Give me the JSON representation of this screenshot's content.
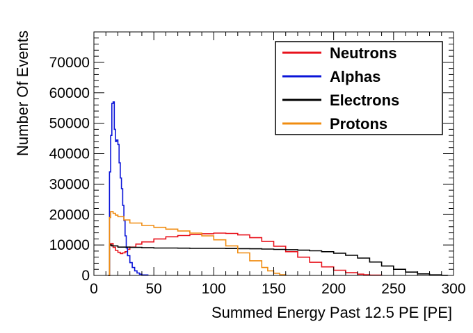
{
  "chart_data": {
    "type": "histogram-step",
    "title": "",
    "xlabel": "Summed Energy Past 12.5 PE [PE]",
    "ylabel": "Number Of Events",
    "xlim": [
      0,
      300
    ],
    "ylim": [
      0,
      80000
    ],
    "x_ticks": [
      0,
      50,
      100,
      150,
      200,
      250,
      300
    ],
    "y_ticks": [
      0,
      10000,
      20000,
      30000,
      40000,
      50000,
      60000,
      70000
    ],
    "grid": false,
    "legend_position": "top-right",
    "series": [
      {
        "name": "Neutrons",
        "color": "#e8121c",
        "points": [
          [
            12,
            0
          ],
          [
            13,
            9800
          ],
          [
            14,
            10500
          ],
          [
            16,
            9200
          ],
          [
            18,
            8200
          ],
          [
            20,
            7600
          ],
          [
            22,
            7200
          ],
          [
            24,
            7400
          ],
          [
            26,
            7800
          ],
          [
            28,
            8600
          ],
          [
            30,
            9300
          ],
          [
            35,
            10300
          ],
          [
            40,
            11000
          ],
          [
            50,
            12000
          ],
          [
            60,
            12700
          ],
          [
            70,
            13100
          ],
          [
            80,
            13400
          ],
          [
            90,
            13700
          ],
          [
            100,
            13900
          ],
          [
            110,
            13800
          ],
          [
            120,
            13300
          ],
          [
            130,
            12400
          ],
          [
            140,
            11200
          ],
          [
            150,
            9600
          ],
          [
            160,
            7800
          ],
          [
            170,
            6000
          ],
          [
            180,
            4300
          ],
          [
            190,
            2800
          ],
          [
            200,
            1700
          ],
          [
            210,
            900
          ],
          [
            220,
            400
          ],
          [
            225,
            200
          ],
          [
            230,
            80
          ],
          [
            240,
            0
          ]
        ]
      },
      {
        "name": "Alphas",
        "color": "#0a14d8",
        "points": [
          [
            12,
            0
          ],
          [
            13,
            34000
          ],
          [
            14,
            46000
          ],
          [
            15,
            56500
          ],
          [
            16,
            57000
          ],
          [
            17,
            48000
          ],
          [
            18,
            44000
          ],
          [
            19,
            44500
          ],
          [
            20,
            43000
          ],
          [
            21,
            37000
          ],
          [
            22,
            32000
          ],
          [
            23,
            28500
          ],
          [
            24,
            23000
          ],
          [
            25,
            18000
          ],
          [
            26,
            13000
          ],
          [
            27,
            9000
          ],
          [
            28,
            6500
          ],
          [
            30,
            4200
          ],
          [
            32,
            2600
          ],
          [
            34,
            1500
          ],
          [
            36,
            800
          ],
          [
            38,
            400
          ],
          [
            40,
            150
          ],
          [
            45,
            0
          ]
        ]
      },
      {
        "name": "Electrons",
        "color": "#000000",
        "points": [
          [
            12,
            0
          ],
          [
            13,
            10000
          ],
          [
            15,
            9700
          ],
          [
            20,
            9300
          ],
          [
            30,
            9200
          ],
          [
            40,
            9100
          ],
          [
            50,
            9000
          ],
          [
            60,
            9000
          ],
          [
            70,
            8950
          ],
          [
            80,
            8900
          ],
          [
            90,
            8900
          ],
          [
            100,
            8900
          ],
          [
            110,
            8850
          ],
          [
            120,
            8800
          ],
          [
            130,
            8750
          ],
          [
            140,
            8650
          ],
          [
            150,
            8550
          ],
          [
            160,
            8450
          ],
          [
            170,
            8300
          ],
          [
            180,
            8100
          ],
          [
            190,
            7800
          ],
          [
            200,
            7300
          ],
          [
            210,
            6600
          ],
          [
            220,
            5700
          ],
          [
            230,
            4400
          ],
          [
            240,
            3100
          ],
          [
            250,
            2000
          ],
          [
            260,
            1100
          ],
          [
            270,
            500
          ],
          [
            280,
            180
          ],
          [
            290,
            50
          ],
          [
            295,
            0
          ]
        ]
      },
      {
        "name": "Protons",
        "color": "#f08c10",
        "points": [
          [
            12,
            0
          ],
          [
            13,
            19000
          ],
          [
            14,
            21000
          ],
          [
            16,
            20400
          ],
          [
            18,
            19800
          ],
          [
            20,
            19300
          ],
          [
            25,
            18200
          ],
          [
            30,
            17200
          ],
          [
            40,
            16400
          ],
          [
            50,
            15800
          ],
          [
            60,
            15200
          ],
          [
            70,
            14600
          ],
          [
            80,
            13900
          ],
          [
            90,
            13000
          ],
          [
            100,
            11700
          ],
          [
            110,
            9700
          ],
          [
            120,
            7400
          ],
          [
            130,
            4800
          ],
          [
            140,
            2600
          ],
          [
            145,
            1500
          ],
          [
            150,
            700
          ],
          [
            155,
            200
          ],
          [
            160,
            0
          ]
        ]
      }
    ]
  }
}
